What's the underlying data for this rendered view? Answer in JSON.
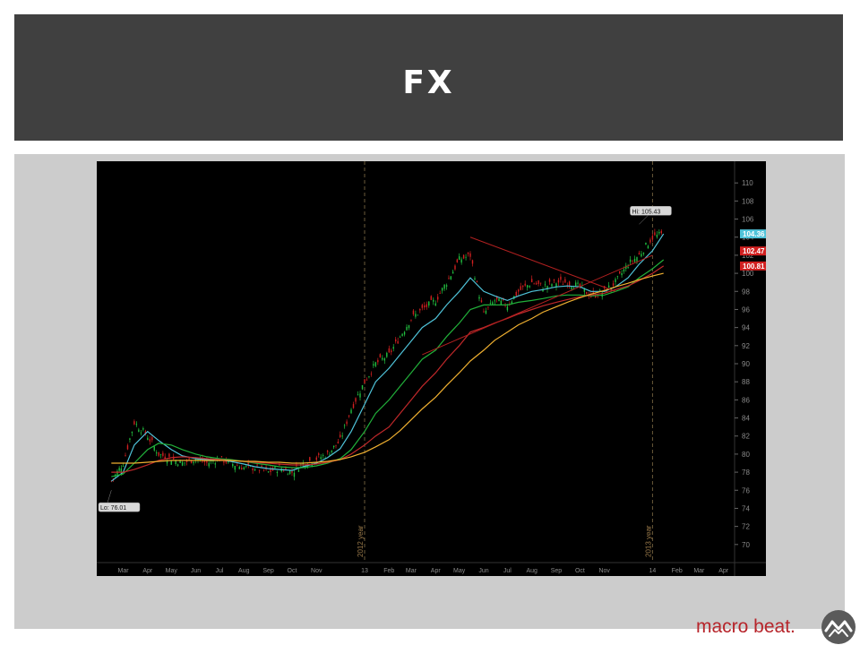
{
  "slide": {
    "title": "FX"
  },
  "footer": {
    "brand_text": "macro beat.",
    "logo_icon": "mountain-logo-icon",
    "brand_color": "#b7252b"
  },
  "colors": {
    "title_bar": "#404040",
    "panel": "#cccccc",
    "chart_bg": "#000000",
    "ma_cyan": "#4fc3d9",
    "ma_green": "#21b03a",
    "ma_red": "#c0282a",
    "ma_orange": "#f0b030",
    "trendline": "#b02020",
    "candle_up": "#22c040",
    "candle_down": "#d22020"
  },
  "chart_data": {
    "type": "line",
    "title": "",
    "x": [
      "2012-02-15",
      "2012-03-01",
      "2012-03-15",
      "2012-04-01",
      "2012-04-15",
      "2012-05-01",
      "2012-05-15",
      "2012-06-01",
      "2012-06-15",
      "2012-07-01",
      "2012-07-15",
      "2012-08-01",
      "2012-08-15",
      "2012-09-01",
      "2012-09-15",
      "2012-10-01",
      "2012-10-15",
      "2012-11-01",
      "2012-11-15",
      "2012-12-01",
      "2012-12-15",
      "2013-01-01",
      "2013-01-15",
      "2013-02-01",
      "2013-02-15",
      "2013-03-01",
      "2013-03-15",
      "2013-04-01",
      "2013-04-15",
      "2013-05-01",
      "2013-05-15",
      "2013-06-01",
      "2013-06-15",
      "2013-07-01",
      "2013-07-15",
      "2013-08-01",
      "2013-08-15",
      "2013-09-01",
      "2013-09-15",
      "2013-10-01",
      "2013-10-15",
      "2013-11-01",
      "2013-11-15",
      "2013-12-01",
      "2013-12-15",
      "2014-01-01",
      "2014-01-15"
    ],
    "series": [
      {
        "name": "",
        "kind": "price",
        "values": [
          77.0,
          79.0,
          83.5,
          82.0,
          80.0,
          79.5,
          79.0,
          79.5,
          79.0,
          79.5,
          79.0,
          78.5,
          78.5,
          78.0,
          78.5,
          78.0,
          79.0,
          79.5,
          80.0,
          81.5,
          85.0,
          88.0,
          90.0,
          91.0,
          93.0,
          95.0,
          96.0,
          97.0,
          99.0,
          101.5,
          102.0,
          95.5,
          97.0,
          96.5,
          98.0,
          99.0,
          98.5,
          99.0,
          99.0,
          98.5,
          97.5,
          98.0,
          99.0,
          101.0,
          102.0,
          104.0,
          104.36
        ]
      },
      {
        "name": "",
        "kind": "ma_short",
        "color": "#4fc3d9",
        "values": [
          77.0,
          78.0,
          81.0,
          82.5,
          81.5,
          80.5,
          79.8,
          79.5,
          79.4,
          79.4,
          79.2,
          78.9,
          78.6,
          78.4,
          78.3,
          78.2,
          78.6,
          79.0,
          79.6,
          80.6,
          82.5,
          85.5,
          88.0,
          89.5,
          91.0,
          92.5,
          94.0,
          95.0,
          96.5,
          98.0,
          99.5,
          98.0,
          97.5,
          97.0,
          97.5,
          98.0,
          98.2,
          98.5,
          98.6,
          98.5,
          98.0,
          98.0,
          98.5,
          99.5,
          101.0,
          102.5,
          104.36
        ]
      },
      {
        "name": "",
        "kind": "ma_mid",
        "color": "#21b03a",
        "values": [
          77.5,
          77.8,
          79.0,
          80.5,
          81.2,
          81.0,
          80.5,
          80.0,
          79.7,
          79.5,
          79.4,
          79.2,
          79.0,
          78.8,
          78.6,
          78.5,
          78.5,
          78.7,
          79.0,
          79.5,
          80.5,
          82.5,
          84.5,
          86.0,
          87.5,
          89.0,
          90.5,
          91.5,
          93.0,
          94.5,
          96.0,
          96.5,
          96.5,
          96.5,
          96.8,
          97.0,
          97.2,
          97.5,
          97.6,
          97.6,
          97.5,
          97.6,
          98.0,
          98.5,
          99.5,
          100.5,
          101.5
        ]
      },
      {
        "name": "",
        "kind": "ma_long",
        "color": "#c0282a",
        "values": [
          78.0,
          78.0,
          78.3,
          78.8,
          79.3,
          79.6,
          79.7,
          79.6,
          79.5,
          79.4,
          79.3,
          79.2,
          79.1,
          79.0,
          78.9,
          78.8,
          78.8,
          78.9,
          79.1,
          79.4,
          80.0,
          81.0,
          82.0,
          83.0,
          84.5,
          86.0,
          87.5,
          89.0,
          90.5,
          92.0,
          93.5,
          94.0,
          94.5,
          95.0,
          95.5,
          96.0,
          96.4,
          96.8,
          97.1,
          97.4,
          97.6,
          97.8,
          98.2,
          98.6,
          99.2,
          100.0,
          100.81
        ]
      },
      {
        "name": "",
        "kind": "ma_longest",
        "color": "#f0b030",
        "values": [
          79.0,
          79.0,
          79.0,
          79.1,
          79.2,
          79.3,
          79.3,
          79.3,
          79.3,
          79.3,
          79.3,
          79.2,
          79.2,
          79.1,
          79.1,
          79.0,
          79.0,
          79.1,
          79.2,
          79.4,
          79.7,
          80.2,
          80.8,
          81.6,
          82.6,
          83.8,
          85.0,
          86.3,
          87.6,
          89.0,
          90.3,
          91.5,
          92.6,
          93.5,
          94.3,
          95.0,
          95.7,
          96.3,
          96.8,
          97.3,
          97.7,
          98.1,
          98.5,
          98.9,
          99.3,
          99.7,
          100.0
        ]
      }
    ],
    "ylim": [
      68,
      112
    ],
    "y_ticks": [
      70,
      72,
      74,
      76,
      78,
      80,
      82,
      84,
      86,
      88,
      90,
      92,
      94,
      96,
      98,
      100,
      102,
      104,
      106,
      108,
      110
    ],
    "x_tick_labels": [
      "Mar",
      "Apr",
      "May",
      "Jun",
      "Jul",
      "Aug",
      "Sep",
      "Oct",
      "Nov",
      "13",
      "Feb",
      "Mar",
      "Apr",
      "May",
      "Jun",
      "Jul",
      "Aug",
      "Sep",
      "Oct",
      "Nov",
      "14",
      "Feb",
      "Mar",
      "Apr"
    ],
    "year_markers": [
      {
        "label": "2012 year",
        "x": "2013-01-01"
      },
      {
        "label": "2013 year",
        "x": "2014-01-01"
      }
    ],
    "annotations": [
      {
        "label": "Hi: 105.43",
        "x": "2013-12-15",
        "y": 105.43
      },
      {
        "label": "Lo: 76.01",
        "x": "2012-02-15",
        "y": 76.01
      }
    ],
    "price_tags": [
      {
        "label": "104.36",
        "value": 104.36,
        "color": "#4fc3d9"
      },
      {
        "label": "102.47",
        "value": 102.47,
        "color": "#d22020"
      },
      {
        "label": "100.81",
        "value": 100.81,
        "color": "#d22020"
      }
    ],
    "trendlines": [
      {
        "from": [
          "2013-05-15",
          104.0
        ],
        "to": [
          "2013-11-15",
          98.0
        ]
      },
      {
        "from": [
          "2013-03-15",
          91.0
        ],
        "to": [
          "2014-01-01",
          102.0
        ]
      }
    ],
    "grid": false,
    "legend": "none"
  }
}
